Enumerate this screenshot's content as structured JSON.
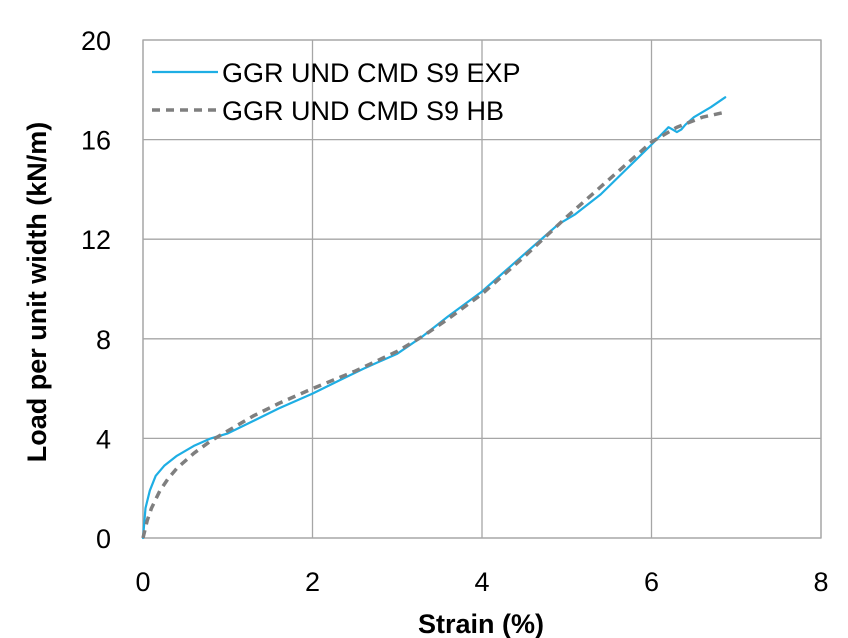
{
  "chart_data": {
    "type": "line",
    "xlabel": "Strain (%)",
    "ylabel": "Load per unit width (kN/m)",
    "xlim": [
      0,
      8
    ],
    "ylim": [
      0,
      20
    ],
    "x_ticks": [
      "0",
      "2",
      "4",
      "6",
      "8"
    ],
    "y_ticks": [
      "0",
      "4",
      "8",
      "12",
      "16",
      "20"
    ],
    "grid": true,
    "legend_position": "top-left",
    "series": [
      {
        "name": "GGR UND CMD S9 EXP",
        "color": "#1EAEE4",
        "style": "solid",
        "x": [
          0,
          0.03,
          0.08,
          0.15,
          0.25,
          0.4,
          0.6,
          0.8,
          1.0,
          1.3,
          1.6,
          2.0,
          2.3,
          2.6,
          3.0,
          3.3,
          3.6,
          4.0,
          4.3,
          4.6,
          4.9,
          5.1,
          5.4,
          5.7,
          6.0,
          6.2,
          6.25,
          6.3,
          6.35,
          6.4,
          6.5,
          6.7,
          6.87
        ],
        "y": [
          0,
          1.2,
          1.9,
          2.5,
          2.9,
          3.3,
          3.7,
          4.0,
          4.2,
          4.7,
          5.2,
          5.8,
          6.3,
          6.8,
          7.4,
          8.1,
          8.9,
          9.9,
          10.8,
          11.7,
          12.6,
          13.0,
          13.8,
          14.8,
          15.8,
          16.5,
          16.4,
          16.3,
          16.4,
          16.6,
          16.9,
          17.3,
          17.7
        ]
      },
      {
        "name": "GGR UND CMD S9 HB",
        "color": "#7F7F7F",
        "style": "dashed",
        "x": [
          0,
          0.05,
          0.1,
          0.2,
          0.3,
          0.4,
          0.6,
          0.8,
          1.0,
          1.3,
          1.6,
          2.0,
          2.5,
          3.0,
          3.3,
          3.6,
          4.0,
          4.5,
          5.0,
          5.5,
          6.0,
          6.3,
          6.6,
          6.87
        ],
        "y": [
          0,
          0.7,
          1.2,
          1.9,
          2.4,
          2.8,
          3.4,
          3.9,
          4.3,
          4.9,
          5.4,
          6.0,
          6.7,
          7.5,
          8.1,
          8.8,
          9.8,
          11.3,
          12.9,
          14.4,
          15.9,
          16.5,
          16.9,
          17.1
        ]
      }
    ]
  }
}
